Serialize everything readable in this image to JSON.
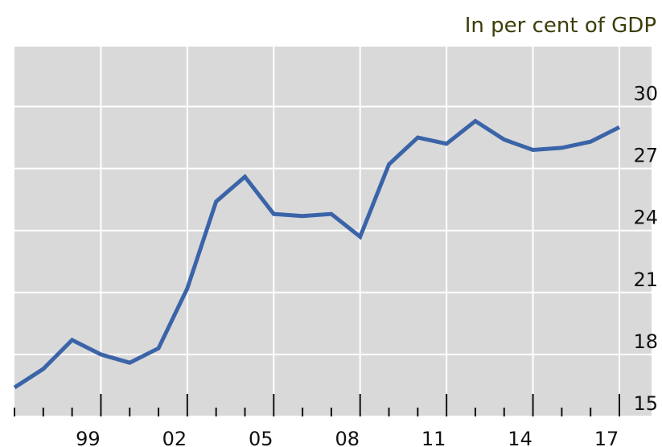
{
  "chart_data": {
    "type": "line",
    "title": "In per cent of GDP",
    "categories": [
      null,
      null,
      null,
      "99",
      null,
      null,
      "02",
      null,
      null,
      "05",
      null,
      null,
      "08",
      null,
      null,
      "11",
      null,
      null,
      "14",
      null,
      null,
      "17"
    ],
    "series": [
      {
        "color": "#3b64a8",
        "values": [
          16.4,
          17.3,
          18.7,
          18.0,
          17.6,
          18.3,
          21.2,
          25.4,
          26.6,
          24.8,
          24.7,
          24.8,
          23.7,
          27.2,
          28.5,
          28.2,
          29.3,
          28.4,
          27.9,
          28.0,
          28.3,
          29.0
        ]
      }
    ],
    "ylim": [
      15,
      32.9
    ],
    "yticks": [
      15,
      18,
      21,
      24,
      27,
      30
    ],
    "grid": true
  }
}
